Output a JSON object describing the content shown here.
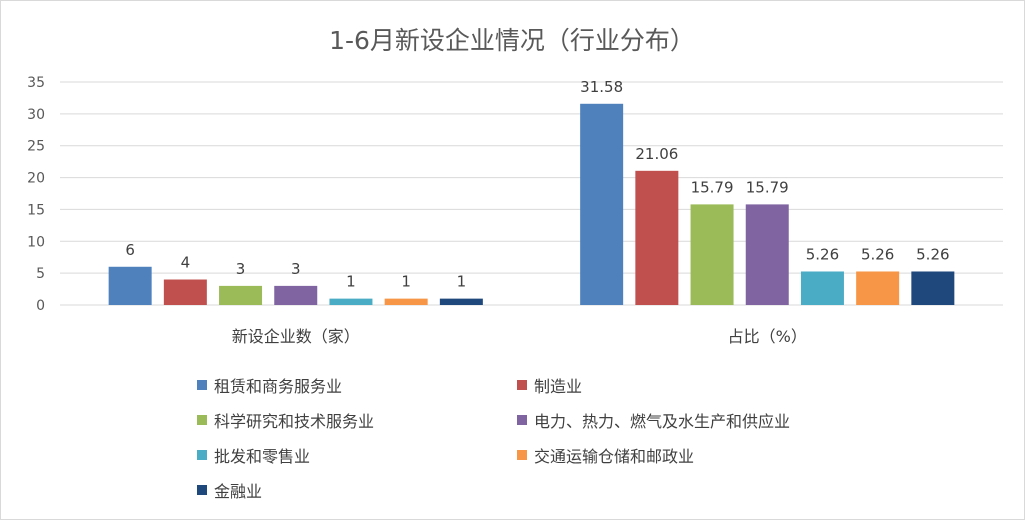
{
  "chart_data": {
    "type": "bar",
    "title": "1-6月新设企业情况（行业分布）",
    "categories": [
      "新设企业数（家）",
      "占比（%）"
    ],
    "ylim": [
      0,
      35
    ],
    "yticks": [
      0,
      5,
      10,
      15,
      20,
      25,
      30,
      35
    ],
    "grid": true,
    "legend_position": "bottom",
    "series": [
      {
        "name": "租赁和商务服务业",
        "color": "#4F81BD",
        "values": [
          6,
          31.58
        ],
        "labels": [
          "6",
          "31.58"
        ]
      },
      {
        "name": "制造业",
        "color": "#C0504D",
        "values": [
          4,
          21.06
        ],
        "labels": [
          "4",
          "21.06"
        ]
      },
      {
        "name": "科学研究和技术服务业",
        "color": "#9BBB59",
        "values": [
          3,
          15.79
        ],
        "labels": [
          "3",
          "15.79"
        ]
      },
      {
        "name": "电力、热力、燃气及水生产和供应业",
        "color": "#8064A2",
        "values": [
          3,
          15.79
        ],
        "labels": [
          "3",
          "15.79"
        ]
      },
      {
        "name": "批发和零售业",
        "color": "#4BACC6",
        "values": [
          1,
          5.26
        ],
        "labels": [
          "1",
          "5.26"
        ]
      },
      {
        "name": "交通运输仓储和邮政业",
        "color": "#F79646",
        "values": [
          1,
          5.26
        ],
        "labels": [
          "1",
          "5.26"
        ]
      },
      {
        "name": "金融业",
        "color": "#1F497D",
        "values": [
          1,
          5.26
        ],
        "labels": [
          "1",
          "5.26"
        ]
      }
    ]
  }
}
